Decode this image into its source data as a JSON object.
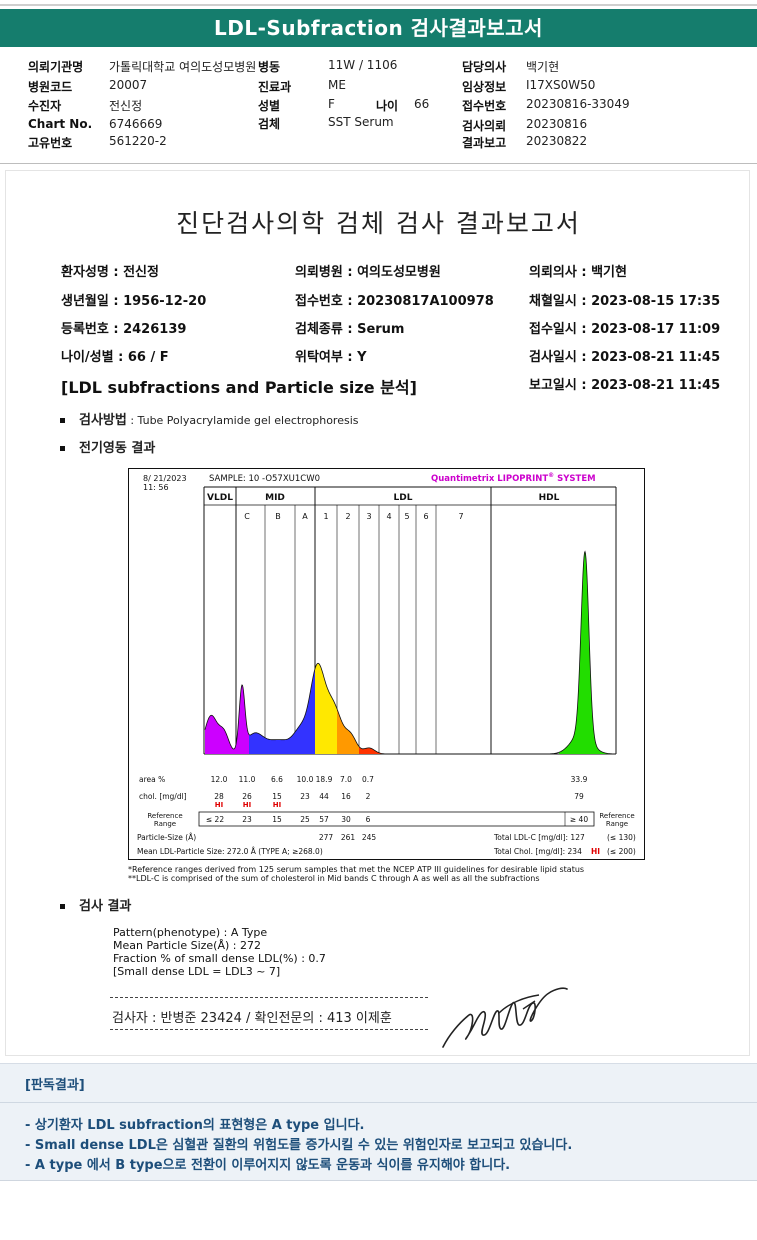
{
  "header": {
    "title": "LDL-Subfraction 검사결과보고서"
  },
  "patient_info": [
    {
      "label": "의뢰기관명",
      "value": "가톨릭대학교 여의도성모병원"
    },
    {
      "label": "병동",
      "value": "11W / 1106"
    },
    {
      "label": "담당의사",
      "value": "백기현"
    },
    {
      "label": "병원코드",
      "value": "20007"
    },
    {
      "label": "진료과",
      "value": "ME"
    },
    {
      "label": "임상정보",
      "value": "I17XS0W50"
    },
    {
      "label": "수진자",
      "value": "전신정"
    },
    {
      "label": "성별",
      "value": "F"
    },
    {
      "label": "나이",
      "value": "66"
    },
    {
      "label": "접수번호",
      "value": "20230816-33049"
    },
    {
      "label": "Chart No.",
      "value": "6746669"
    },
    {
      "label": "검체",
      "value": "SST Serum"
    },
    {
      "label": "검사의뢰",
      "value": "20230816"
    },
    {
      "label": "고유번호",
      "value": "561220-2"
    },
    {
      "label": "결과보고",
      "value": "20230822"
    }
  ],
  "report": {
    "title": "진단검사의학 검체 검사 결과보고서",
    "fields": [
      "환자성명 : 전신정",
      "의뢰병원 : 여의도성모병원",
      "의뢰의사 : 백기현",
      "생년월일 : 1956-12-20",
      "접수번호 : 20230817A100978",
      "채혈일시 : 2023-08-15 17:35",
      "등록번호 : 2426139",
      "검체종류 : Serum",
      "접수일시 : 2023-08-17 11:09",
      "나이/성별 : 66 / F",
      "위탁여부 : Y",
      "검사일시 : 2023-08-21 11:45",
      "보고일시 : 2023-08-21 11:45"
    ],
    "section_title": "[LDL subfractions and Particle size 분석]",
    "method_label": "검사방법",
    "method_value": " : Tube Polyacrylamide gel electrophoresis",
    "electro_label": "전기영동 결과",
    "result_label": "검사 결과",
    "result_lines": [
      "Pattern(phenotype) : A Type",
      "Mean Particle Size(Å) : 272",
      "Fraction % of small dense LDL(%) : 0.7",
      "[Small dense LDL = LDL3 ~ 7]"
    ],
    "inspector": "검사자 : 반병준 23424  /  확인전문의 : 413 이제훈",
    "footnotes": [
      "*Reference ranges derived from 125 serum samples that met the NCEP ATP III guidelines for desirable lipid status",
      "**LDL-C is comprised of the sum of cholesterol in Mid bands C through A as well as all the subfractions"
    ]
  },
  "chart_data": {
    "type": "area",
    "date": "8/ 21/2023",
    "time": "11: 56",
    "sample": "SAMPLE:  10 -O57XU1CW0",
    "brand": "Quantimetrix LIPOPRINT",
    "brand_sup": "®",
    "brand_suffix": " SYSTEM",
    "groups": [
      "VLDL",
      "MID",
      "LDL",
      "HDL"
    ],
    "bands": [
      "C",
      "B",
      "A",
      "1",
      "2",
      "3",
      "4",
      "5",
      "6",
      "7"
    ],
    "area_label": "area %",
    "area_values": [
      "12.0",
      "11.0",
      "6.6",
      "10.0",
      "18.9",
      "7.0",
      "0.7",
      "33.9"
    ],
    "chol_label": "chol. [mg/dl]",
    "chol_values": [
      "28",
      "26",
      "15",
      "23",
      "44",
      "16",
      "2",
      "79"
    ],
    "hi_flags": [
      "HI",
      "HI",
      "HI"
    ],
    "ref_label": [
      "Reference",
      "Range"
    ],
    "ref_values": [
      "≤ 22",
      "23",
      "15",
      "25",
      "57",
      "30",
      "6",
      "≥ 40"
    ],
    "particle_size_label": "Particle-Size (Å)",
    "particle_sizes": [
      "277",
      "261",
      "245"
    ],
    "mean_ldl_label": "Mean LDL-Particle Size:   272.0 Å  (TYPE A; ≥268.0)",
    "total_ldl_label": "Total LDL-C [mg/dl]:  127",
    "total_ldl_ref": "(≤ 130)",
    "total_chol_label": "Total Chol. [mg/dl]:   234",
    "total_chol_flag": "HI",
    "total_chol_ref": "(≤ 200)",
    "colors": {
      "vldl": "#cc00ff",
      "mid": "#3333ff",
      "ldl1": "#ffe800",
      "ldl2": "#ff9900",
      "ldl3": "#ff3300",
      "hdl": "#22dd00"
    }
  },
  "interpretation": {
    "title": "[판독결과]",
    "lines": [
      "- 상기환자 LDL subfraction의 표현형은 A type 입니다.",
      "   -   Small dense LDL은 심혈관 질환의 위험도를 증가시킬 수 있는 위험인자로 보고되고 있습니다.",
      "   -   A type 에서 B type으로 전환이 이루어지지 않도록 운동과 식이를 유지해야 합니다."
    ]
  }
}
